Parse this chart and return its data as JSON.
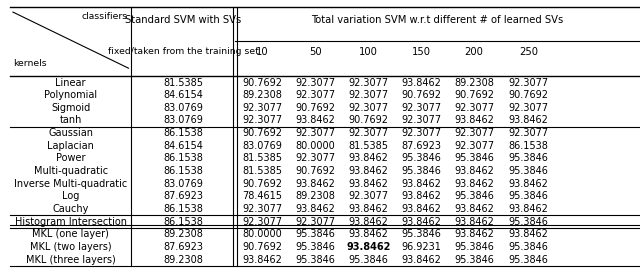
{
  "rows": [
    [
      "Linear",
      "81.5385",
      "90.7692",
      "92.3077",
      "92.3077",
      "93.8462",
      "89.2308",
      "92.3077"
    ],
    [
      "Polynomial",
      "84.6154",
      "89.2308",
      "92.3077",
      "92.3077",
      "90.7692",
      "90.7692",
      "90.7692"
    ],
    [
      "Sigmoid",
      "83.0769",
      "92.3077",
      "90.7692",
      "92.3077",
      "92.3077",
      "92.3077",
      "92.3077"
    ],
    [
      "tanh",
      "83.0769",
      "92.3077",
      "93.8462",
      "90.7692",
      "92.3077",
      "93.8462",
      "93.8462"
    ],
    [
      "Gaussian",
      "86.1538",
      "90.7692",
      "92.3077",
      "92.3077",
      "92.3077",
      "92.3077",
      "92.3077"
    ],
    [
      "Laplacian",
      "84.6154",
      "83.0769",
      "80.0000",
      "81.5385",
      "87.6923",
      "92.3077",
      "86.1538"
    ],
    [
      "Power",
      "86.1538",
      "81.5385",
      "92.3077",
      "93.8462",
      "95.3846",
      "95.3846",
      "95.3846"
    ],
    [
      "Multi-quadratic",
      "86.1538",
      "81.5385",
      "90.7692",
      "93.8462",
      "95.3846",
      "93.8462",
      "95.3846"
    ],
    [
      "Inverse Multi-quadratic",
      "83.0769",
      "90.7692",
      "93.8462",
      "93.8462",
      "93.8462",
      "93.8462",
      "93.8462"
    ],
    [
      "Log",
      "87.6923",
      "78.4615",
      "89.2308",
      "92.3077",
      "93.8462",
      "95.3846",
      "95.3846"
    ],
    [
      "Cauchy",
      "86.1538",
      "92.3077",
      "93.8462",
      "93.8462",
      "93.8462",
      "93.8462",
      "93.8462"
    ],
    [
      "Histogram Intersection",
      "86.1538",
      "92.3077",
      "92.3077",
      "93.8462",
      "93.8462",
      "93.8462",
      "95.3846"
    ],
    [
      "MKL (one layer)",
      "89.2308",
      "80.0000",
      "95.3846",
      "93.8462",
      "95.3846",
      "93.8462",
      "93.8462"
    ],
    [
      "MKL (two layers)",
      "87.6923",
      "90.7692",
      "95.3846",
      "93.8462",
      "96.9231",
      "95.3846",
      "95.3846"
    ],
    [
      "MKL (three layers)",
      "89.2308",
      "93.8462",
      "95.3846",
      "95.3846",
      "93.8462",
      "95.3846",
      "95.3846"
    ]
  ],
  "bold_cell_row": 13,
  "bold_cell_col": 4,
  "section_dividers_after": [
    3,
    10,
    11
  ],
  "double_dividers_after": [
    11
  ],
  "sv_labels": [
    "10",
    "50",
    "100",
    "150",
    "200",
    "250"
  ],
  "header_std": "Standard SVM with SVs",
  "header_std_sub": "fixed/taken from the training set",
  "header_tv": "Total variation SVM w.r.t different # of learned SVs",
  "label_classifiers": "classifiers",
  "label_kernels": "kernels",
  "bg_color": "#ffffff",
  "font_size": 7.0,
  "header_font_size": 7.2
}
